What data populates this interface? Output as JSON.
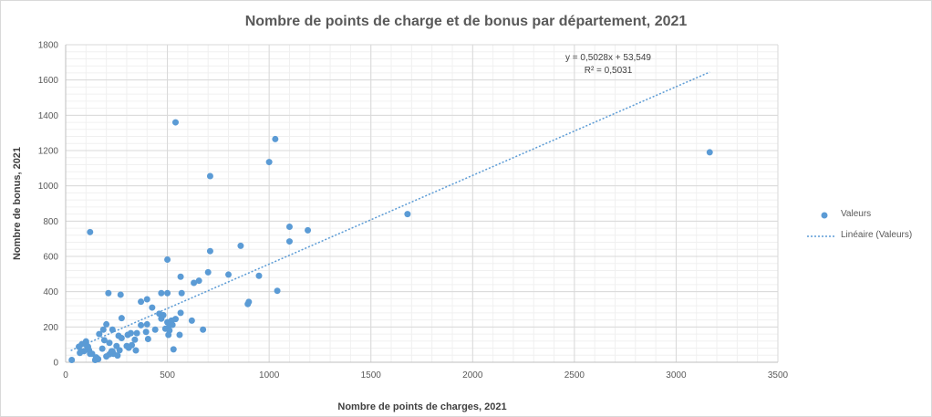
{
  "colors": {
    "point": "#5b9bd5",
    "trendline": "#5b9bd5",
    "major_grid": "#d9d9d9",
    "minor_grid": "#f0f0f0",
    "axis": "#bfbfbf"
  },
  "chart_data": {
    "type": "scatter",
    "title": "Nombre de points de charge et de bonus par département, 2021",
    "xlabel": "Nombre de points de charges,  2021",
    "ylabel": "Nombre de bonus,  2021",
    "xlim": [
      0,
      3500
    ],
    "ylim": [
      0,
      1800
    ],
    "x_ticks": [
      0,
      500,
      1000,
      1500,
      2000,
      2500,
      3000,
      3500
    ],
    "y_ticks": [
      0,
      200,
      400,
      600,
      800,
      1000,
      1200,
      1400,
      1600,
      1800
    ],
    "x_tick_labels": [
      "0",
      "500",
      "1000",
      "1500",
      "2000",
      "2500",
      "3000",
      "3500"
    ],
    "y_tick_labels": [
      "0",
      "200",
      "400",
      "600",
      "800",
      "1000",
      "1200",
      "1400",
      "1600",
      "1800"
    ],
    "grid": true,
    "minor_grid": true,
    "legend_position": "right",
    "series": [
      {
        "name": "Valeurs",
        "x": [
          540,
          1030,
          1000,
          710,
          3165,
          1680,
          120,
          1100,
          1190,
          1100,
          860,
          710,
          500,
          800,
          950,
          700,
          565,
          1040,
          210,
          270,
          570,
          470,
          500,
          630,
          655,
          400,
          370,
          425,
          895,
          900,
          460,
          480,
          470,
          275,
          500,
          540,
          520,
          565,
          620,
          370,
          400,
          510,
          490,
          510,
          525,
          440,
          675,
          200,
          185,
          230,
          165,
          395,
          405,
          320,
          350,
          560,
          505,
          260,
          305,
          275,
          340,
          190,
          215,
          325,
          250,
          300,
          310,
          180,
          230,
          100,
          80,
          105,
          115,
          70,
          130,
          90,
          110,
          235,
          255,
          345,
          215,
          225,
          265,
          530,
          145,
          30,
          65,
          75,
          120,
          150,
          200,
          160
        ],
        "y": [
          1360,
          1265,
          1135,
          1055,
          1190,
          840,
          738,
          768,
          748,
          685,
          660,
          630,
          582,
          497,
          490,
          510,
          485,
          405,
          392,
          383,
          392,
          392,
          392,
          450,
          462,
          357,
          343,
          310,
          330,
          342,
          275,
          267,
          247,
          250,
          227,
          245,
          236,
          280,
          236,
          210,
          215,
          210,
          190,
          180,
          212,
          185,
          185,
          215,
          185,
          185,
          160,
          172,
          132,
          165,
          165,
          155,
          155,
          150,
          155,
          137,
          128,
          125,
          110,
          97,
          92,
          92,
          82,
          77,
          62,
          118,
          103,
          92,
          68,
          53,
          48,
          63,
          88,
          48,
          38,
          67,
          45,
          62,
          68,
          73,
          13,
          13,
          88,
          63,
          48,
          28,
          33,
          18
        ]
      }
    ],
    "trendline": {
      "name": "Linéaire (Valeurs)",
      "slope": 0.5028,
      "intercept": 53.549,
      "x_range": [
        25,
        3165
      ],
      "equation": "y = 0,5028x + 53,549",
      "r_squared": "R² = 0,5031"
    }
  }
}
